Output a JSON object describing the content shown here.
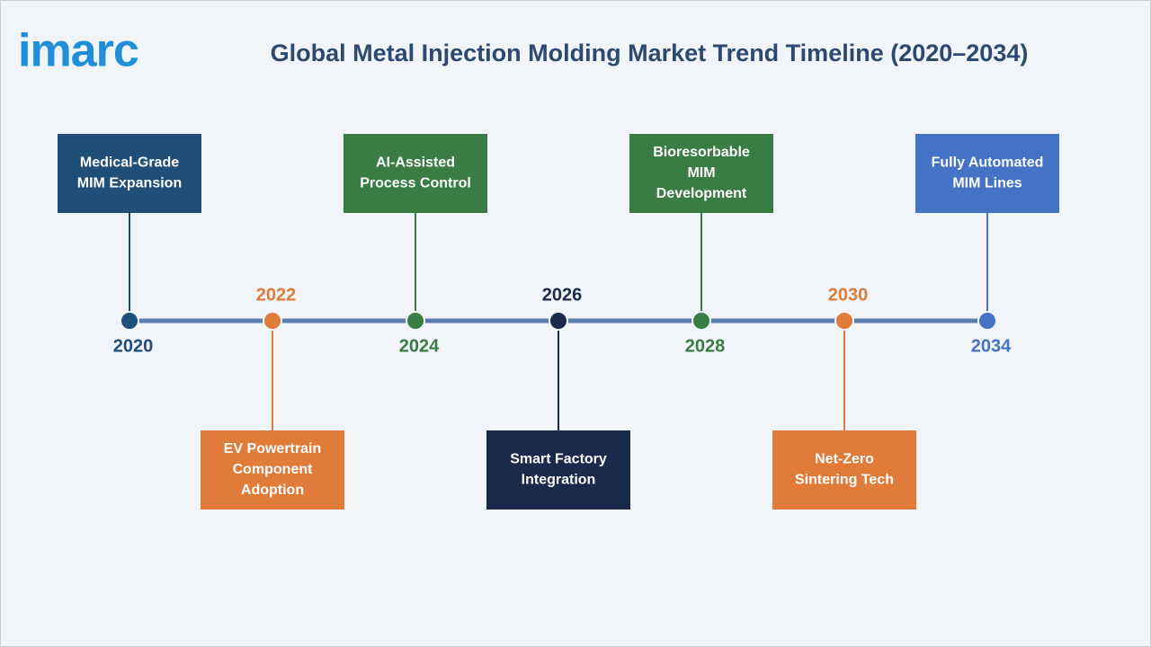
{
  "logo": "imarc",
  "title": "Global Metal Injection Molding Market Trend Timeline (2020–2034)",
  "events": [
    {
      "year": "2020",
      "lines": [
        "Medical-Grade",
        "MIM Expansion"
      ],
      "color": "#1f4e79"
    },
    {
      "year": "2022",
      "lines": [
        "EV Powertrain",
        "Component",
        "Adoption"
      ],
      "color": "#e07b3a"
    },
    {
      "year": "2024",
      "lines": [
        "AI-Assisted",
        "Process Control"
      ],
      "color": "#3a7d44"
    },
    {
      "year": "2026",
      "lines": [
        "Smart Factory",
        "Integration"
      ],
      "color": "#1a2a4a"
    },
    {
      "year": "2028",
      "lines": [
        "Bioresorbable",
        "MIM",
        "Development"
      ],
      "color": "#3a7d44"
    },
    {
      "year": "2030",
      "lines": [
        "Net-Zero",
        "Sintering Tech"
      ],
      "color": "#e07b3a"
    },
    {
      "year": "2034",
      "lines": [
        "Fully Automated",
        "MIM Lines"
      ],
      "color": "#4472c4"
    }
  ]
}
